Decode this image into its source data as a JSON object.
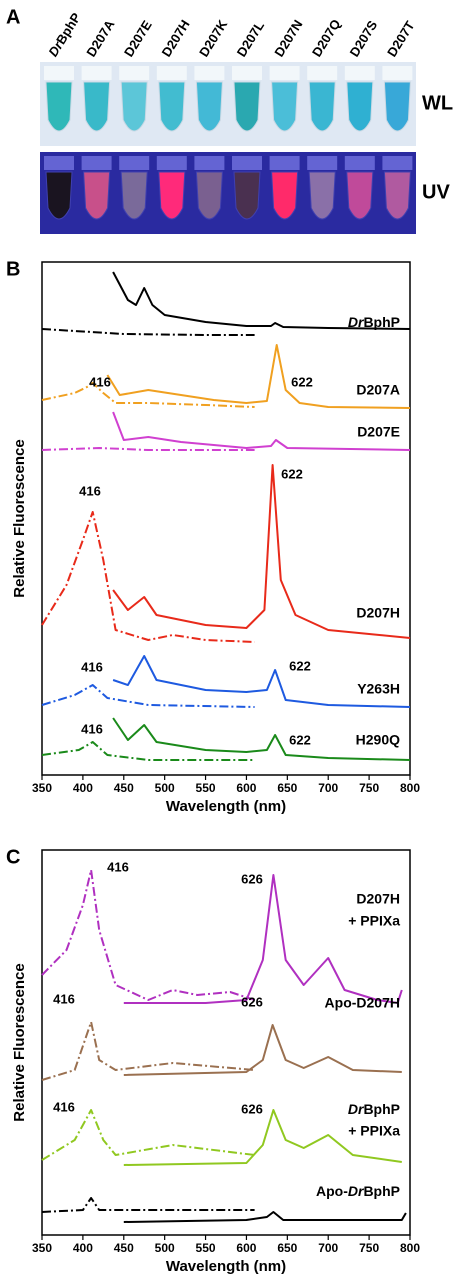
{
  "panel_a": {
    "panel_label": "A",
    "columns": [
      "DrBphP",
      "D207A",
      "D207E",
      "D207H",
      "D207K",
      "D207L",
      "D207N",
      "D207Q",
      "D207S",
      "D207T"
    ],
    "rows": [
      {
        "label": "WL",
        "tube_colors": [
          "#2fb8b8",
          "#39b9c9",
          "#5cc6d8",
          "#42bcd0",
          "#43b9d6",
          "#2aa8b0",
          "#4bbed8",
          "#3ab6d2",
          "#2fb0d2",
          "#38a8d8"
        ]
      },
      {
        "label": "UV",
        "tube_colors": [
          "#1a1420",
          "#c8508a",
          "#7a6a9a",
          "#ff2a7a",
          "#7a6090",
          "#4a3050",
          "#ff2a6a",
          "#8a70a8",
          "#c04a9a",
          "#b05aa0"
        ]
      }
    ]
  },
  "chart_data": [
    {
      "type": "line",
      "panel_label": "B",
      "xlabel": "Wavelength (nm)",
      "ylabel": "Relative Fluorescence",
      "xlim": [
        350,
        800
      ],
      "xticks": [
        350,
        400,
        450,
        500,
        550,
        600,
        650,
        700,
        750,
        800
      ],
      "ylim": [
        0,
        513
      ],
      "samples": [
        {
          "label": [
            "DrBphP"
          ],
          "color": "#000000",
          "excitation": {
            "x": [
              350,
              450,
              550,
              610
            ],
            "values": [
              446,
              441,
              440,
              440
            ]
          },
          "emission": {
            "x": [
              437,
              455,
              465,
              475,
              485,
              500,
              550,
              600,
              630,
              635,
              645,
              700,
              800
            ],
            "values": [
              503,
              475,
              470,
              487,
              470,
              460,
              453,
              449,
              449,
              452,
              448,
              447,
              446
            ]
          },
          "peak_labels": []
        },
        {
          "label": [
            "D207A"
          ],
          "color": "#f0a020",
          "excitation": {
            "x": [
              350,
              390,
              405,
              412,
              425,
              440,
              480,
              550,
              610
            ],
            "values": [
              375,
              382,
              388,
              392,
              382,
              372,
              372,
              370,
              368
            ]
          },
          "emission": {
            "x": [
              430,
              445,
              480,
              520,
              560,
              600,
              625,
              637,
              648,
              665,
              700,
              800
            ],
            "values": [
              400,
              380,
              385,
              380,
              375,
              372,
              374,
              430,
              385,
              372,
              368,
              367
            ]
          },
          "peak_labels": [
            416,
            622
          ]
        },
        {
          "label": [
            "D207E"
          ],
          "color": "#d040d0",
          "excitation": {
            "x": [
              350,
              420,
              480,
              610
            ],
            "values": [
              325,
              327,
              325,
              325
            ]
          },
          "emission": {
            "x": [
              437,
              450,
              480,
              520,
              600,
              630,
              636,
              650,
              800
            ],
            "values": [
              363,
              335,
              338,
              333,
              327,
              329,
              335,
              327,
              325
            ]
          },
          "peak_labels": []
        },
        {
          "label": [
            "D207H"
          ],
          "color": "#e82a1a",
          "excitation": {
            "x": [
              350,
              380,
              400,
              412,
              425,
              440,
              480,
              510,
              550,
              610
            ],
            "values": [
              150,
              190,
              235,
              263,
              215,
              145,
              135,
              140,
              135,
              133
            ]
          },
          "emission": {
            "x": [
              437,
              455,
              475,
              490,
              550,
              600,
              622,
              632,
              642,
              660,
              700,
              800
            ],
            "values": [
              185,
              165,
              178,
              160,
              150,
              147,
              165,
              310,
              195,
              160,
              145,
              137
            ]
          },
          "peak_labels": [
            416,
            622
          ]
        },
        {
          "label": [
            "Y263H"
          ],
          "color": "#1e5ae0",
          "excitation": {
            "x": [
              350,
              390,
              412,
              430,
              480,
              610
            ],
            "values": [
              70,
              80,
              90,
              77,
              70,
              68
            ]
          },
          "emission": {
            "x": [
              437,
              455,
              475,
              490,
              550,
              600,
              625,
              635,
              648,
              700,
              800
            ],
            "values": [
              95,
              90,
              119,
              95,
              85,
              83,
              85,
              105,
              75,
              70,
              68
            ]
          },
          "peak_labels": [
            416,
            622
          ]
        },
        {
          "label": [
            "H290Q"
          ],
          "color": "#1a8a1a",
          "excitation": {
            "x": [
              350,
              395,
              412,
              430,
              480,
              610
            ],
            "values": [
              20,
              25,
              33,
              20,
              15,
              15
            ]
          },
          "emission": {
            "x": [
              437,
              455,
              475,
              490,
              550,
              600,
              625,
              635,
              648,
              700,
              800
            ],
            "values": [
              57,
              35,
              50,
              33,
              25,
              23,
              25,
              40,
              20,
              17,
              15
            ]
          },
          "peak_labels": [
            416,
            622
          ]
        }
      ]
    },
    {
      "type": "line",
      "panel_label": "C",
      "xlabel": "Wavelength (nm)",
      "ylabel": "Relative Fluorescence",
      "xlim": [
        350,
        800
      ],
      "xticks": [
        350,
        400,
        450,
        500,
        550,
        600,
        650,
        700,
        750,
        800
      ],
      "ylim": [
        0,
        385
      ],
      "samples": [
        {
          "label": [
            "D207H",
            "+ PPIXa"
          ],
          "color": "#b030c0",
          "excitation": {
            "x": [
              350,
              380,
              400,
              410,
              420,
              440,
              480,
              510,
              540,
              580,
              610
            ],
            "values": [
              260,
              285,
              330,
              365,
              305,
              250,
              235,
              245,
              240,
              243,
              235
            ]
          },
          "emission": {
            "x": [
              450,
              550,
              600,
              620,
              633,
              648,
              670,
              700,
              720,
              760,
              785,
              790
            ],
            "values": [
              232,
              232,
              235,
              275,
              360,
              275,
              250,
              277,
              245,
              235,
              232,
              245
            ]
          },
          "peak_labels": [
            416,
            626
          ]
        },
        {
          "label": [
            "Apo-D207H"
          ],
          "color": "#9a7050",
          "excitation": {
            "x": [
              350,
              390,
              410,
              420,
              440,
              510,
              610
            ],
            "values": [
              155,
              165,
              213,
              175,
              165,
              172,
              165
            ]
          },
          "emission": {
            "x": [
              450,
              600,
              620,
              632,
              648,
              670,
              700,
              730,
              790
            ],
            "values": [
              160,
              163,
              175,
              210,
              175,
              167,
              178,
              165,
              163
            ]
          },
          "peak_labels": [
            416,
            626
          ]
        },
        {
          "label": [
            "DrBphP",
            "+ PPIXa"
          ],
          "color": "#90c820",
          "excitation": {
            "x": [
              350,
              390,
              410,
              425,
              440,
              510,
              610
            ],
            "values": [
              75,
              95,
              125,
              95,
              80,
              90,
              80
            ]
          },
          "emission": {
            "x": [
              450,
              600,
              620,
              633,
              648,
              670,
              700,
              730,
              790
            ],
            "values": [
              70,
              72,
              90,
              125,
              95,
              87,
              100,
              80,
              73
            ]
          },
          "peak_labels": [
            416,
            626
          ]
        },
        {
          "label": [
            "Apo-DrBphP"
          ],
          "color": "#000000",
          "excitation": {
            "x": [
              350,
              400,
              410,
              420,
              610
            ],
            "values": [
              23,
              25,
              37,
              25,
              25
            ]
          },
          "emission": {
            "x": [
              450,
              600,
              625,
              633,
              645,
              790,
              795
            ],
            "values": [
              13,
              15,
              18,
              23,
              15,
              15,
              22
            ]
          },
          "peak_labels": []
        }
      ]
    }
  ]
}
